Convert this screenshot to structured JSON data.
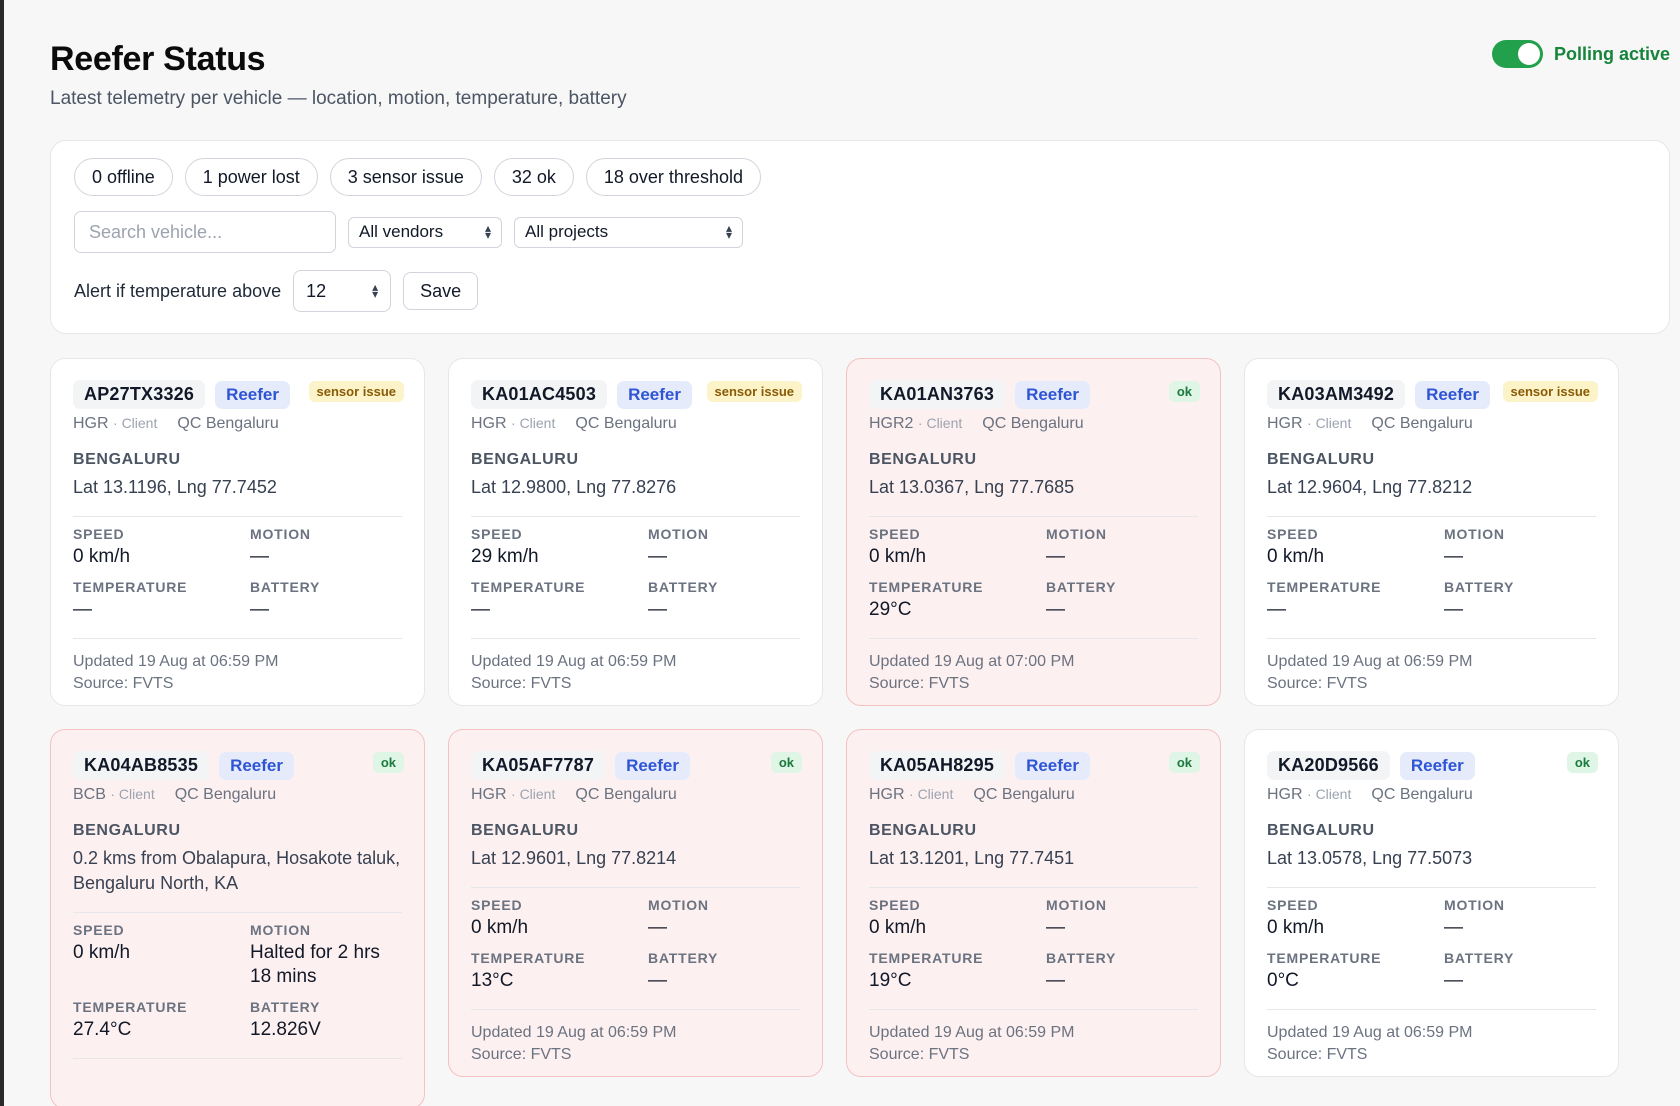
{
  "header": {
    "title": "Reefer Status",
    "subtitle": "Latest telemetry per vehicle — location, motion, temperature, battery",
    "polling_label": "Polling active",
    "polling_on": true
  },
  "summary": [
    "0 offline",
    "1 power lost",
    "3 sensor issue",
    "32 ok",
    "18 over threshold"
  ],
  "filters": {
    "search_placeholder": "Search vehicle...",
    "vendor": "All vendors",
    "project": "All projects"
  },
  "alert": {
    "label": "Alert if temperature above",
    "threshold": "12",
    "save_label": "Save"
  },
  "labels": {
    "speed": "SPEED",
    "motion": "MOTION",
    "temperature": "TEMPERATURE",
    "battery": "BATTERY"
  },
  "vehicles": [
    {
      "plate": "AP27TX3326",
      "type": "Reefer",
      "status": "sensor issue",
      "vendor": "HGR",
      "role": "· Client",
      "project": "QC Bengaluru",
      "city": "BENGALURU",
      "location": "Lat 13.1196, Lng 77.7452",
      "speed": "0 km/h",
      "motion": "—",
      "temperature": "—",
      "battery": "—",
      "updated": "Updated 19 Aug at 06:59 PM",
      "source": "Source: FVTS"
    },
    {
      "plate": "KA01AC4503",
      "type": "Reefer",
      "status": "sensor issue",
      "vendor": "HGR",
      "role": "· Client",
      "project": "QC Bengaluru",
      "city": "BENGALURU",
      "location": "Lat 12.9800, Lng 77.8276",
      "speed": "29 km/h",
      "motion": "—",
      "temperature": "—",
      "battery": "—",
      "updated": "Updated 19 Aug at 06:59 PM",
      "source": "Source: FVTS"
    },
    {
      "plate": "KA01AN3763",
      "type": "Reefer",
      "status": "ok",
      "vendor": "HGR2",
      "role": "· Client",
      "project": "QC Bengaluru",
      "city": "BENGALURU",
      "location": "Lat 13.0367, Lng 77.7685",
      "speed": "0 km/h",
      "motion": "—",
      "temperature": "29°C",
      "battery": "—",
      "updated": "Updated 19 Aug at 07:00 PM",
      "source": "Source: FVTS"
    },
    {
      "plate": "KA03AM3492",
      "type": "Reefer",
      "status": "sensor issue",
      "vendor": "HGR",
      "role": "· Client",
      "project": "QC Bengaluru",
      "city": "BENGALURU",
      "location": "Lat 12.9604, Lng 77.8212",
      "speed": "0 km/h",
      "motion": "—",
      "temperature": "—",
      "battery": "—",
      "updated": "Updated 19 Aug at 06:59 PM",
      "source": "Source: FVTS"
    },
    {
      "plate": "KA04AB8535",
      "type": "Reefer",
      "status": "ok",
      "vendor": "BCB",
      "role": "· Client",
      "project": "QC Bengaluru",
      "city": "BENGALURU",
      "location": "0.2 kms from Obalapura, Hosakote taluk, Bengaluru North, KA",
      "speed": "0 km/h",
      "motion": "Halted for 2 hrs 18 mins",
      "temperature": "27.4°C",
      "battery": "12.826V",
      "updated": "",
      "source": ""
    },
    {
      "plate": "KA05AF7787",
      "type": "Reefer",
      "status": "ok",
      "vendor": "HGR",
      "role": "· Client",
      "project": "QC Bengaluru",
      "city": "BENGALURU",
      "location": "Lat 12.9601, Lng 77.8214",
      "speed": "0 km/h",
      "motion": "—",
      "temperature": "13°C",
      "battery": "—",
      "updated": "Updated 19 Aug at 06:59 PM",
      "source": "Source: FVTS"
    },
    {
      "plate": "KA05AH8295",
      "type": "Reefer",
      "status": "ok",
      "vendor": "HGR",
      "role": "· Client",
      "project": "QC Bengaluru",
      "city": "BENGALURU",
      "location": "Lat 13.1201, Lng 77.7451",
      "speed": "0 km/h",
      "motion": "—",
      "temperature": "19°C",
      "battery": "—",
      "updated": "Updated 19 Aug at 06:59 PM",
      "source": "Source: FVTS"
    },
    {
      "plate": "KA20D9566",
      "type": "Reefer",
      "status": "ok",
      "vendor": "HGR",
      "role": "· Client",
      "project": "QC Bengaluru",
      "city": "BENGALURU",
      "location": "Lat 13.0578, Lng 77.5073",
      "speed": "0 km/h",
      "motion": "—",
      "temperature": "0°C",
      "battery": "—",
      "updated": "Updated 19 Aug at 06:59 PM",
      "source": "Source: FVTS"
    }
  ],
  "highlighted_plates": [
    "KA01AN3763",
    "KA04AB8535",
    "KA05AF7787",
    "KA05AH8295"
  ],
  "colors": {
    "accent_green": "#22a04b",
    "alert_card_bg": "#fdf0f0",
    "reefer_badge": "#2f55d4"
  }
}
